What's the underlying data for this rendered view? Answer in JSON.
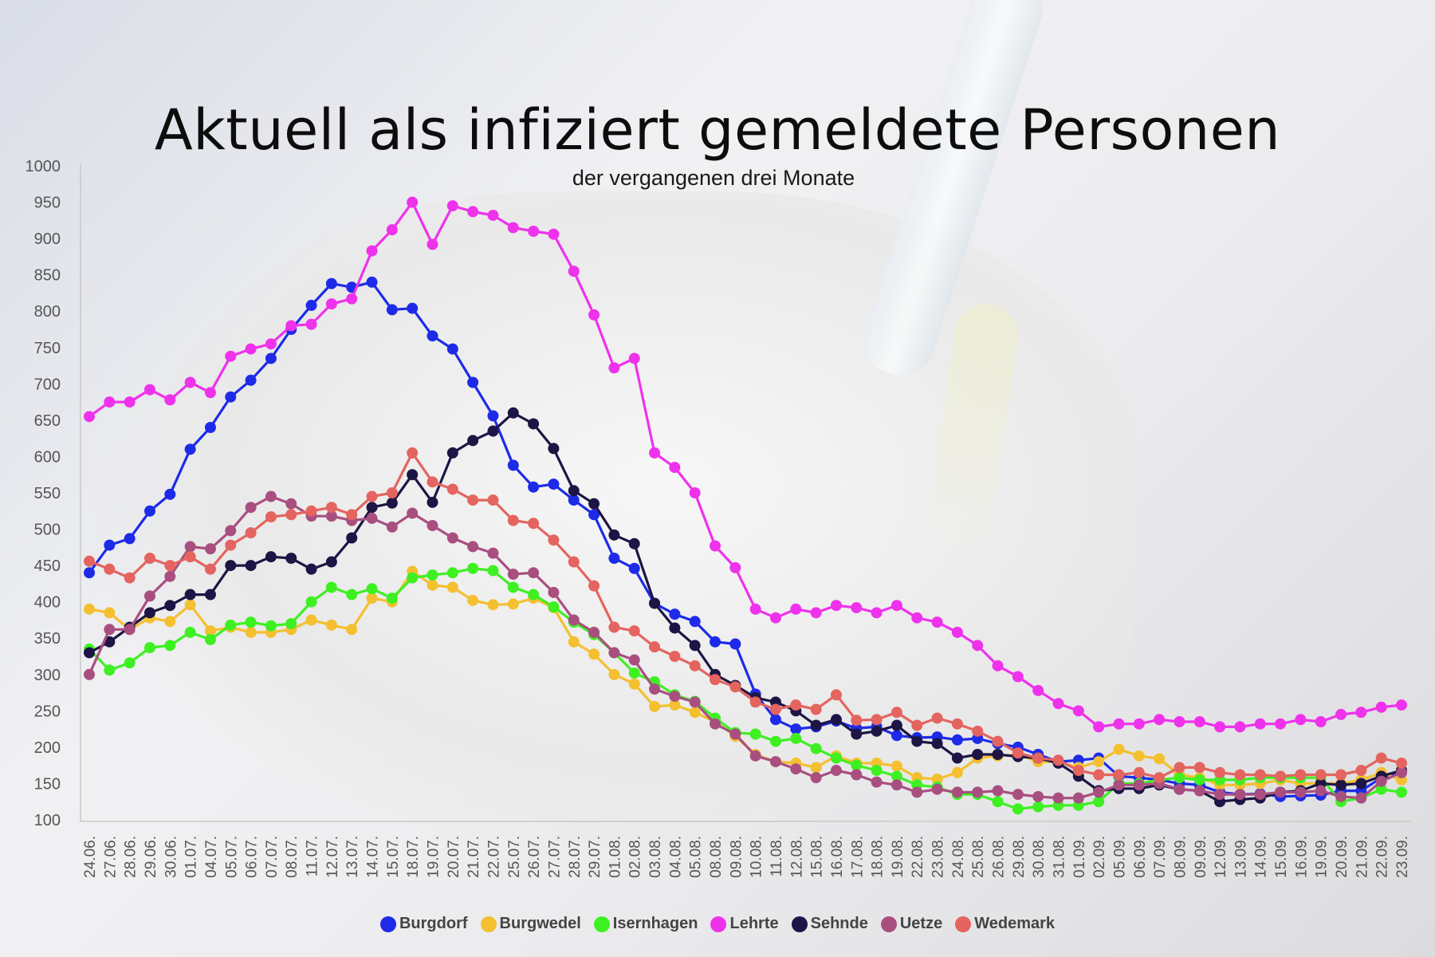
{
  "chart_data": {
    "type": "line",
    "title": "Aktuell als infiziert gemeldete Personen",
    "subtitle": "der vergangenen drei Monate",
    "ylim": [
      100,
      1000
    ],
    "yticks": [
      1000,
      950,
      900,
      850,
      800,
      750,
      700,
      650,
      600,
      550,
      500,
      450,
      400,
      350,
      300,
      250,
      200,
      150,
      100
    ],
    "grid": false,
    "legend_position": "bottom",
    "categories": [
      "24.06.",
      "27.06.",
      "28.06.",
      "29.06.",
      "30.06.",
      "01.07.",
      "04.07.",
      "05.07.",
      "06.07.",
      "07.07.",
      "08.07.",
      "11.07.",
      "12.07.",
      "13.07.",
      "14.07.",
      "15.07.",
      "18.07.",
      "19.07.",
      "20.07.",
      "21.07.",
      "22.07.",
      "25.07.",
      "26.07.",
      "27.07.",
      "28.07.",
      "29.07.",
      "01.08.",
      "02.08.",
      "03.08.",
      "04.08.",
      "05.08.",
      "08.08.",
      "09.08.",
      "10.08.",
      "11.08.",
      "12.08.",
      "15.08.",
      "16.08.",
      "17.08.",
      "18.08.",
      "19.08.",
      "22.08.",
      "23.08.",
      "24.08.",
      "25.08.",
      "26.08.",
      "29.08.",
      "30.08.",
      "31.08.",
      "01.09.",
      "02.09.",
      "05.09.",
      "06.09.",
      "07.09.",
      "08.09.",
      "09.09.",
      "12.09.",
      "13.09.",
      "14.09.",
      "15.09.",
      "16.09.",
      "19.09.",
      "20.09.",
      "21.09.",
      "22.09.",
      "23.09."
    ],
    "series": [
      {
        "name": "Burgdorf",
        "color": "#1d2be8",
        "values": [
          440,
          478,
          487,
          525,
          548,
          610,
          640,
          682,
          705,
          735,
          775,
          808,
          838,
          833,
          840,
          802,
          804,
          766,
          748,
          702,
          656,
          588,
          558,
          562,
          540,
          520,
          460,
          446,
          398,
          383,
          373,
          345,
          342,
          273,
          238,
          225,
          228,
          236,
          226,
          228,
          216,
          213,
          214,
          210,
          212,
          205,
          200,
          190,
          180,
          182,
          185,
          160,
          158,
          155,
          150,
          148,
          138,
          135,
          136,
          132,
          133,
          134,
          140,
          140,
          158,
          165
        ]
      },
      {
        "name": "Burgwedel",
        "color": "#f4c030",
        "values": [
          390,
          385,
          362,
          378,
          373,
          396,
          360,
          365,
          358,
          358,
          362,
          375,
          368,
          362,
          405,
          400,
          442,
          423,
          420,
          402,
          396,
          397,
          405,
          392,
          345,
          328,
          300,
          287,
          256,
          258,
          248,
          235,
          215,
          190,
          180,
          178,
          172,
          188,
          178,
          178,
          174,
          158,
          156,
          165,
          185,
          188,
          190,
          180,
          180,
          172,
          180,
          197,
          188,
          184,
          162,
          158,
          148,
          148,
          150,
          155,
          150,
          150,
          150,
          155,
          165,
          155
        ]
      },
      {
        "name": "Isernhagen",
        "color": "#3ef022",
        "values": [
          335,
          306,
          316,
          337,
          340,
          358,
          348,
          368,
          372,
          367,
          370,
          400,
          420,
          410,
          418,
          405,
          433,
          437,
          440,
          446,
          443,
          420,
          410,
          393,
          372,
          355,
          330,
          302,
          290,
          272,
          263,
          240,
          220,
          218,
          208,
          212,
          198,
          185,
          175,
          168,
          160,
          148,
          145,
          135,
          135,
          125,
          115,
          118,
          120,
          120,
          125,
          150,
          150,
          155,
          158,
          155,
          155,
          155,
          158,
          158,
          158,
          158,
          125,
          130,
          142,
          138
        ]
      },
      {
        "name": "Lehrte",
        "color": "#ee32ec",
        "values": [
          655,
          675,
          675,
          692,
          678,
          702,
          688,
          738,
          748,
          755,
          780,
          782,
          810,
          817,
          883,
          912,
          950,
          892,
          945,
          937,
          932,
          915,
          910,
          906,
          855,
          795,
          722,
          735,
          605,
          585,
          550,
          477,
          447,
          390,
          378,
          390,
          385,
          395,
          392,
          385,
          395,
          378,
          372,
          358,
          340,
          312,
          297,
          278,
          260,
          250,
          228,
          232,
          232,
          238,
          235,
          235,
          228,
          228,
          232,
          232,
          238,
          235,
          245,
          248,
          255,
          258
        ]
      },
      {
        "name": "Sehnde",
        "color": "#1d1545",
        "values": [
          330,
          345,
          365,
          385,
          395,
          410,
          410,
          450,
          450,
          462,
          460,
          445,
          455,
          488,
          530,
          536,
          575,
          537,
          605,
          622,
          635,
          660,
          645,
          611,
          553,
          535,
          492,
          480,
          398,
          364,
          340,
          300,
          285,
          268,
          262,
          250,
          230,
          238,
          218,
          222,
          230,
          208,
          205,
          185,
          190,
          190,
          187,
          185,
          178,
          160,
          140,
          143,
          143,
          148,
          142,
          140,
          125,
          128,
          130,
          138,
          140,
          150,
          148,
          150,
          160,
          168
        ]
      },
      {
        "name": "Uetze",
        "color": "#a94f80",
        "values": [
          300,
          362,
          362,
          408,
          435,
          476,
          473,
          498,
          530,
          545,
          535,
          518,
          518,
          512,
          515,
          503,
          522,
          505,
          488,
          476,
          467,
          438,
          440,
          413,
          375,
          358,
          330,
          320,
          280,
          270,
          262,
          232,
          218,
          188,
          180,
          170,
          158,
          168,
          162,
          152,
          148,
          138,
          142,
          138,
          138,
          140,
          135,
          132,
          130,
          130,
          138,
          148,
          148,
          150,
          142,
          140,
          135,
          135,
          135,
          138,
          138,
          140,
          132,
          130,
          153,
          165
        ]
      },
      {
        "name": "Wedemark",
        "color": "#e4645f",
        "values": [
          456,
          445,
          433,
          460,
          450,
          462,
          445,
          478,
          495,
          517,
          520,
          525,
          530,
          520,
          545,
          550,
          605,
          565,
          555,
          540,
          540,
          512,
          508,
          485,
          455,
          422,
          365,
          360,
          338,
          325,
          312,
          293,
          283,
          262,
          252,
          258,
          252,
          272,
          237,
          238,
          248,
          230,
          240,
          232,
          222,
          208,
          192,
          185,
          182,
          168,
          162,
          162,
          165,
          158,
          172,
          172,
          165,
          162,
          162,
          160,
          162,
          162,
          162,
          168,
          185,
          178
        ]
      }
    ]
  }
}
